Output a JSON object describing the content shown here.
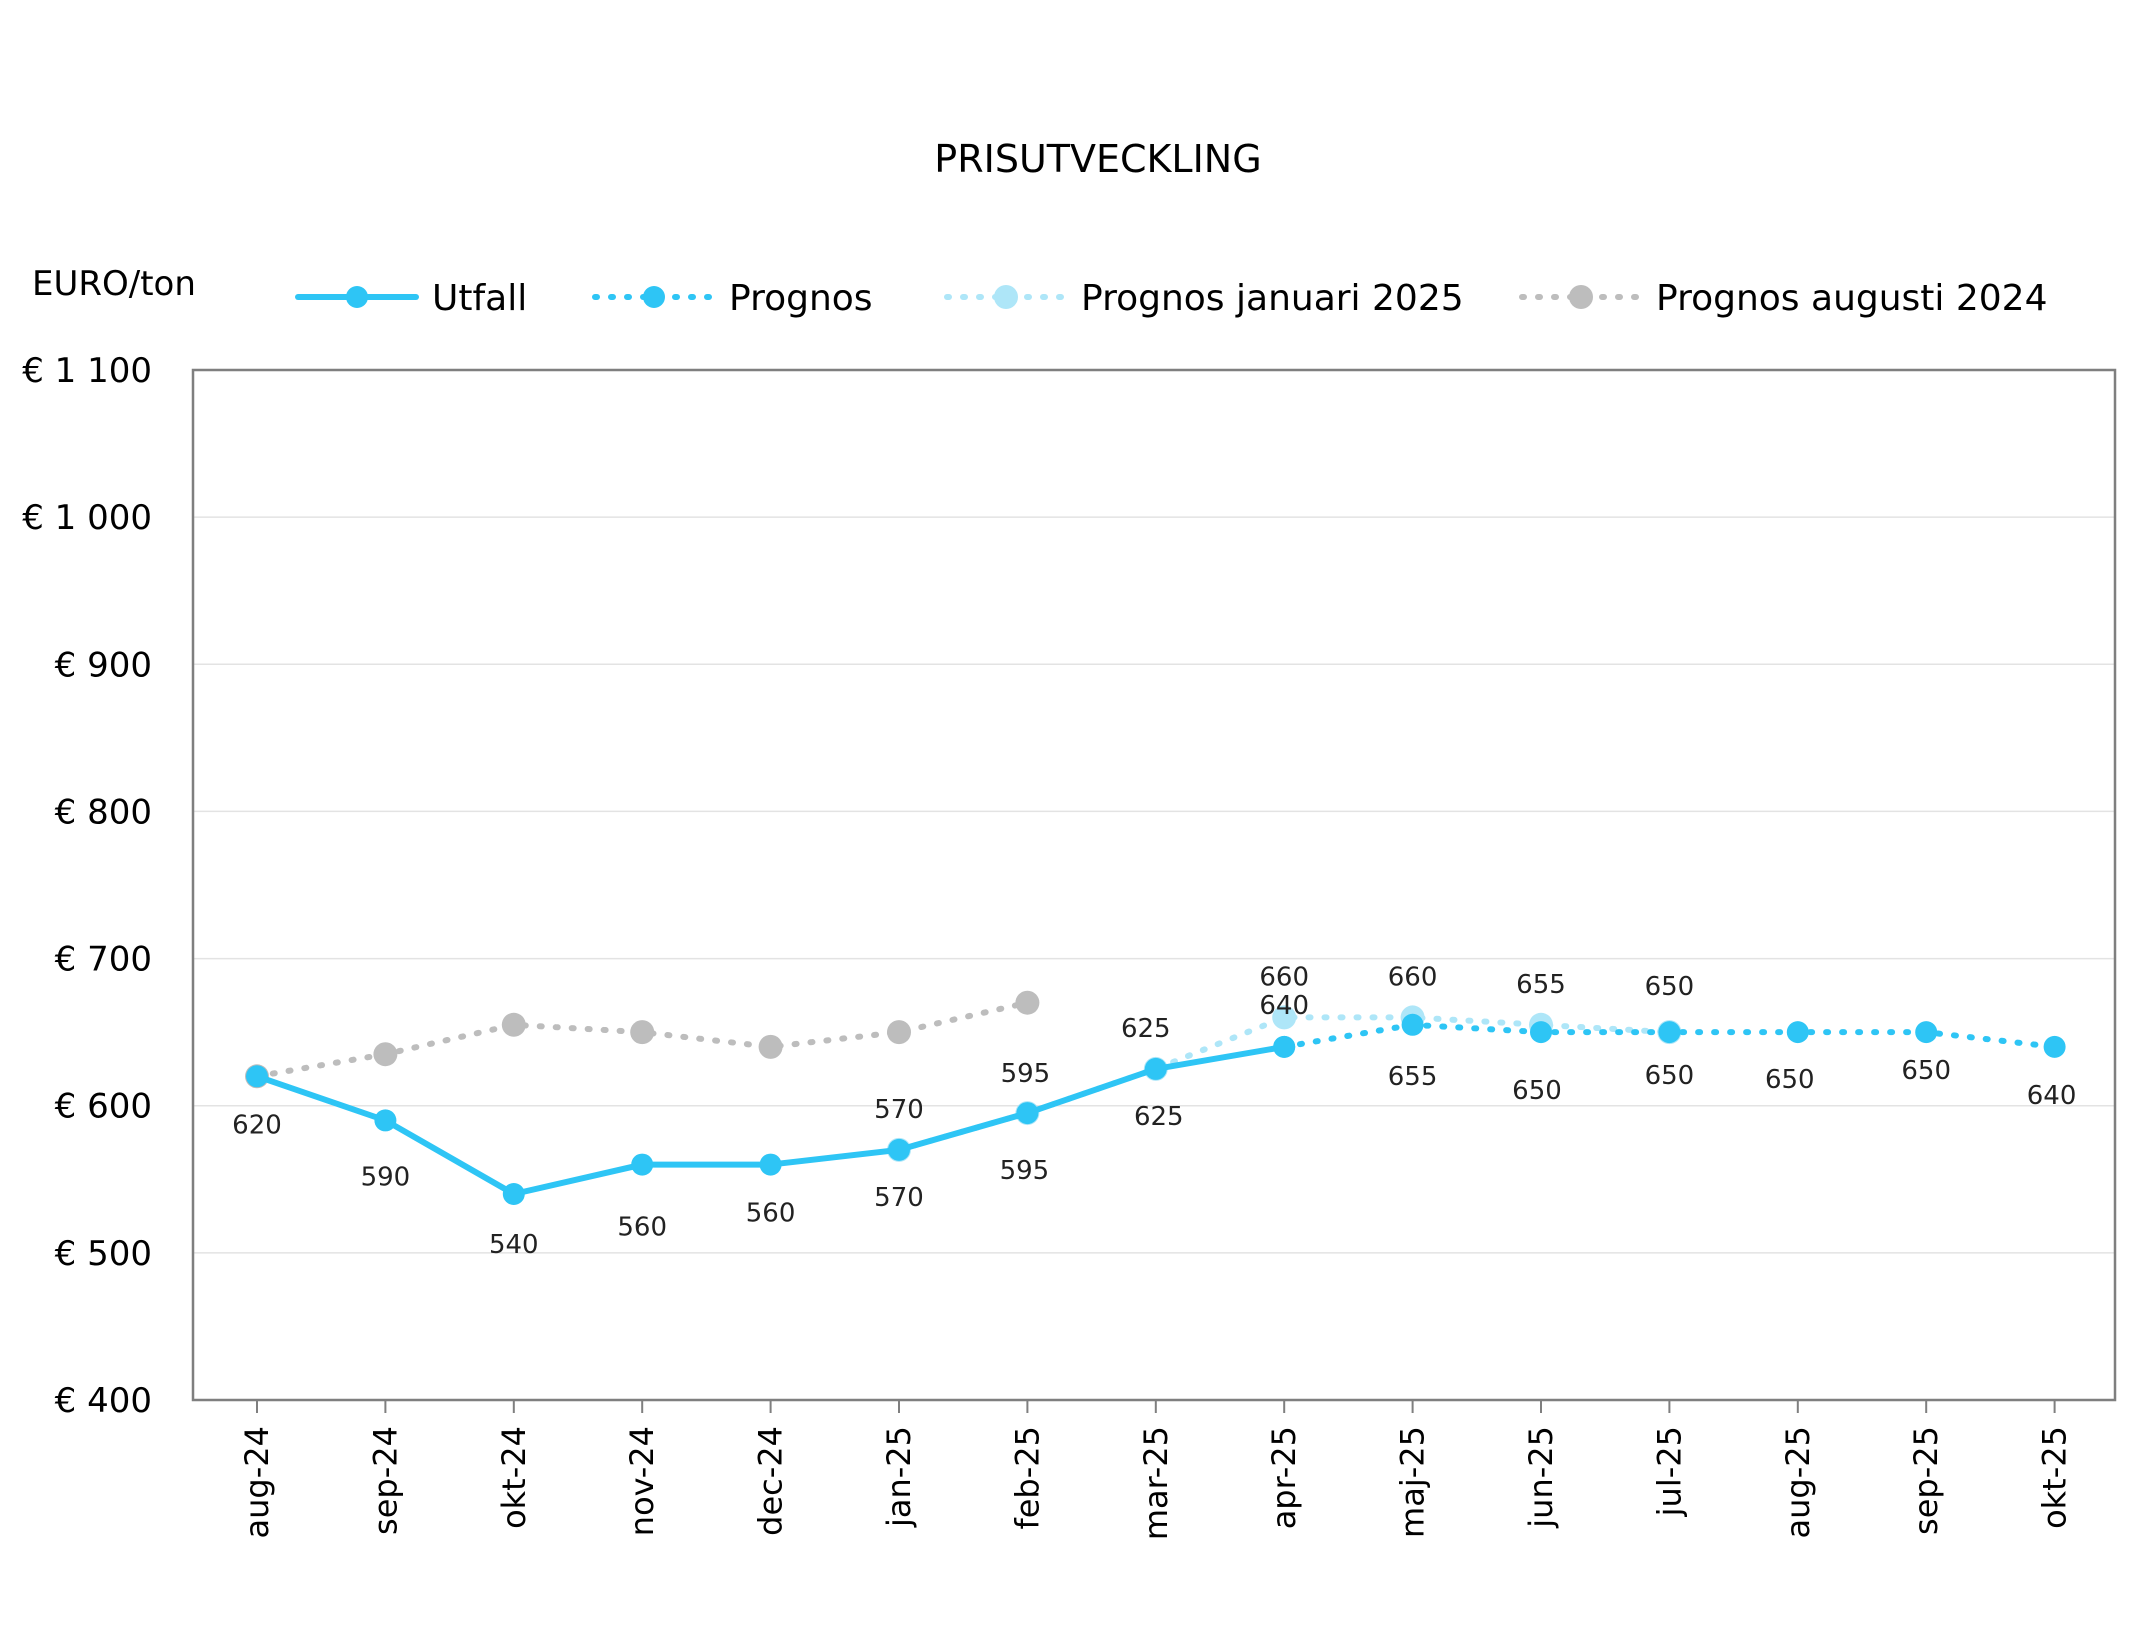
{
  "chart_data": {
    "type": "line",
    "title": "PRISUTVECKLING",
    "ylabel": "EURO/ton",
    "xlabel": "",
    "ylim": [
      400,
      1100
    ],
    "yticks": [
      400,
      500,
      600,
      700,
      800,
      900,
      1000,
      1100
    ],
    "ytick_labels": [
      "€  400",
      "€  500",
      "€  600",
      "€  700",
      "€  800",
      "€  900",
      "€ 1 000",
      "€ 1 100"
    ],
    "categories": [
      "aug-24",
      "sep-24",
      "okt-24",
      "nov-24",
      "dec-24",
      "jan-25",
      "feb-25",
      "mar-25",
      "apr-25",
      "maj-25",
      "jun-25",
      "jul-25",
      "aug-25",
      "sep-25",
      "okt-25"
    ],
    "grid": true,
    "legend_position": "top",
    "series": [
      {
        "name": "Utfall",
        "style": "solid",
        "color": "#2ec5f5",
        "values": [
          620,
          590,
          540,
          560,
          560,
          570,
          595,
          625,
          640,
          null,
          null,
          null,
          null,
          null,
          null
        ],
        "labels": [
          "620",
          "590",
          "540",
          "560",
          "560",
          "570",
          "595",
          "625",
          "640",
          "",
          "",
          "",
          "",
          "",
          ""
        ]
      },
      {
        "name": "Prognos",
        "style": "dotted",
        "color": "#2ec5f5",
        "values": [
          null,
          null,
          null,
          null,
          null,
          null,
          null,
          null,
          640,
          655,
          650,
          650,
          650,
          650,
          640
        ],
        "labels": [
          "",
          "",
          "",
          "",
          "",
          "",
          "",
          "",
          "",
          "655",
          "650",
          "650",
          "650",
          "650",
          "640"
        ]
      },
      {
        "name": "Prognos januari 2025",
        "style": "dotted",
        "color": "#aee6f8",
        "values": [
          null,
          null,
          null,
          null,
          null,
          570,
          595,
          625,
          660,
          660,
          655,
          650,
          null,
          null,
          null
        ],
        "labels": [
          "",
          "",
          "",
          "",
          "",
          "570",
          "595",
          "625",
          "660",
          "660",
          "655",
          "650",
          "",
          "",
          ""
        ]
      },
      {
        "name": "Prognos augusti 2024",
        "style": "dotted",
        "color": "#bdbdbd",
        "values": [
          620,
          635,
          655,
          650,
          640,
          650,
          670,
          null,
          null,
          null,
          null,
          null,
          null,
          null,
          null
        ],
        "labels": [
          "",
          "",
          "",
          "",
          "",
          "",
          "",
          "",
          "",
          "",
          "",
          "",
          "",
          "",
          ""
        ]
      }
    ]
  }
}
